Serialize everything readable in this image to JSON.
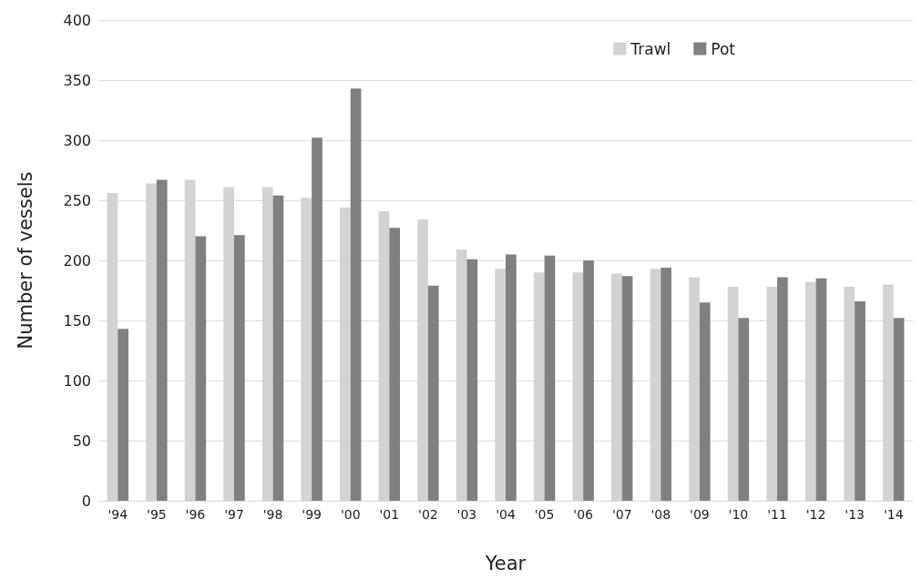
{
  "chart_data": {
    "type": "bar",
    "xlabel": "Year",
    "ylabel": "Number of vessels",
    "categories": [
      "'94",
      "'95",
      "'96",
      "'97",
      "'98",
      "'99",
      "'00",
      "'01",
      "'02",
      "'03",
      "'04",
      "'05",
      "'06",
      "'07",
      "'08",
      "'09",
      "'10",
      "'11",
      "'12",
      "'13",
      "'14"
    ],
    "series": [
      {
        "name": "Trawl",
        "color": "#d3d3d3",
        "values": [
          256,
          264,
          267,
          261,
          261,
          252,
          244,
          241,
          234,
          209,
          193,
          190,
          190,
          189,
          193,
          186,
          178,
          178,
          182,
          178,
          180
        ]
      },
      {
        "name": "Pot",
        "color": "#808080",
        "values": [
          143,
          267,
          220,
          221,
          254,
          302,
          343,
          227,
          179,
          201,
          205,
          204,
          200,
          187,
          194,
          165,
          152,
          186,
          185,
          166,
          152
        ]
      }
    ],
    "ylim": [
      0,
      400
    ],
    "yticks": [
      0,
      50,
      100,
      150,
      200,
      250,
      300,
      350,
      400
    ],
    "grid": "y",
    "legend": "top right"
  }
}
